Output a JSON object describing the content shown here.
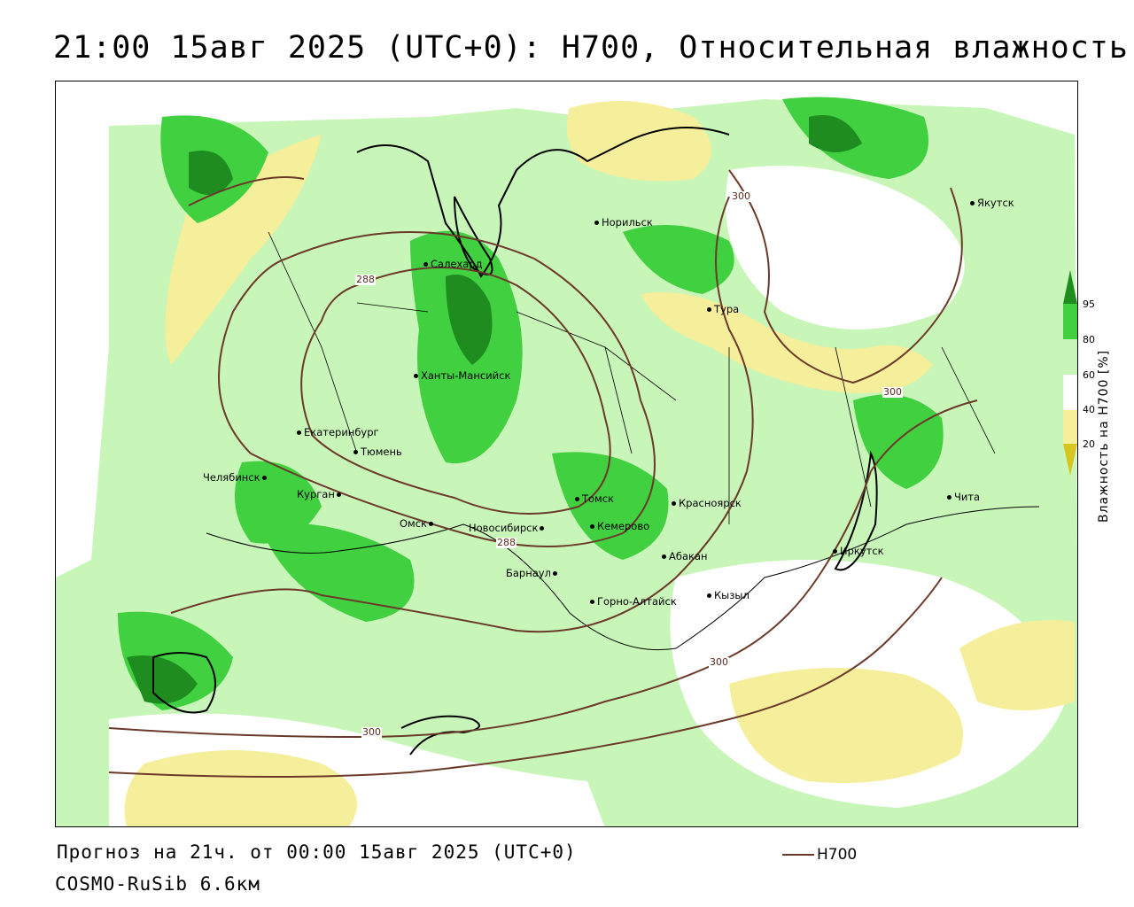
{
  "header": {
    "title": "21:00 15авг 2025 (UTC+0): H700, Относительная влажность"
  },
  "footer": {
    "forecast": "Прогноз на 21ч. от 00:00 15авг 2025 (UTC+0)",
    "model": "COSMO-RuSib 6.6км",
    "legend_label": "H700"
  },
  "colorbar": {
    "title": "Влажность на H700 [%]",
    "ticks": [
      "95",
      "80",
      "60",
      "40",
      "20"
    ],
    "colors": {
      "above95": "#1e8c1e",
      "c80_95": "#40d040",
      "c60_80": "#c8f5b8",
      "c40_60": "#ffffff",
      "c20_40": "#f5ee9a",
      "below20": "#d9c520"
    }
  },
  "contour_labels": [
    "288",
    "288",
    "300",
    "300",
    "300",
    "300"
  ],
  "cities": [
    {
      "name": "Якутск"
    },
    {
      "name": "Норильск"
    },
    {
      "name": "Салехард"
    },
    {
      "name": "Тура"
    },
    {
      "name": "Ханты-Мансийск"
    },
    {
      "name": "Екатеринбург"
    },
    {
      "name": "Тюмень"
    },
    {
      "name": "Челябинск"
    },
    {
      "name": "Курган"
    },
    {
      "name": "Омск"
    },
    {
      "name": "Новосибирск"
    },
    {
      "name": "Томск"
    },
    {
      "name": "Кемерово"
    },
    {
      "name": "Красноярск"
    },
    {
      "name": "Абакан"
    },
    {
      "name": "Барнаул"
    },
    {
      "name": "Горно-Алтайск"
    },
    {
      "name": "Кызыл"
    },
    {
      "name": "Иркутск"
    },
    {
      "name": "Чита"
    }
  ]
}
